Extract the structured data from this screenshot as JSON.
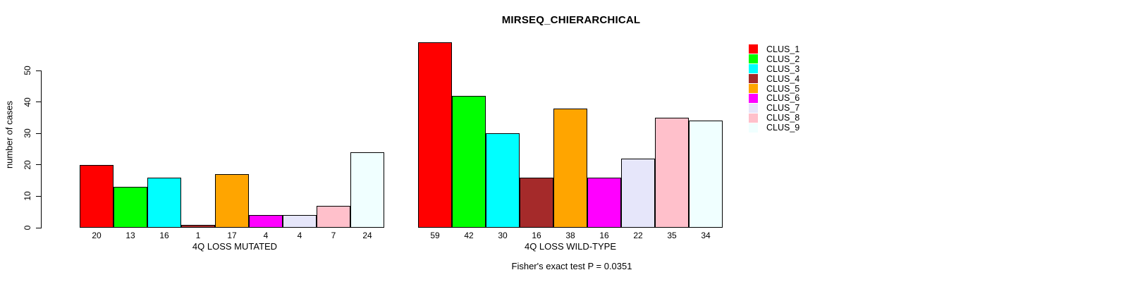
{
  "chart_data": {
    "type": "bar",
    "title": "MIRSEQ_CHIERARCHICAL",
    "ylabel": "number of cases",
    "ylim": [
      0,
      59
    ],
    "yticks": [
      0,
      10,
      20,
      30,
      40,
      50
    ],
    "grid": false,
    "legend_position": "right",
    "legend": [
      {
        "label": "CLUS_1",
        "color": "#ff0000"
      },
      {
        "label": "CLUS_2",
        "color": "#00ff00"
      },
      {
        "label": "CLUS_3",
        "color": "#00ffff"
      },
      {
        "label": "CLUS_4",
        "color": "#a52a2a"
      },
      {
        "label": "CLUS_5",
        "color": "#ffa500"
      },
      {
        "label": "CLUS_6",
        "color": "#ff00ff"
      },
      {
        "label": "CLUS_7",
        "color": "#e6e6fa"
      },
      {
        "label": "CLUS_8",
        "color": "#ffc0cb"
      },
      {
        "label": "CLUS_9",
        "color": "#f0ffff"
      }
    ],
    "groups": [
      {
        "label": "4Q LOSS MUTATED",
        "values": [
          20,
          13,
          16,
          1,
          17,
          4,
          4,
          7,
          24
        ]
      },
      {
        "label": "4Q LOSS WILD-TYPE",
        "values": [
          59,
          42,
          30,
          16,
          38,
          16,
          22,
          35,
          34
        ]
      }
    ],
    "annotation": "Fisher's exact test P = 0.0351"
  }
}
